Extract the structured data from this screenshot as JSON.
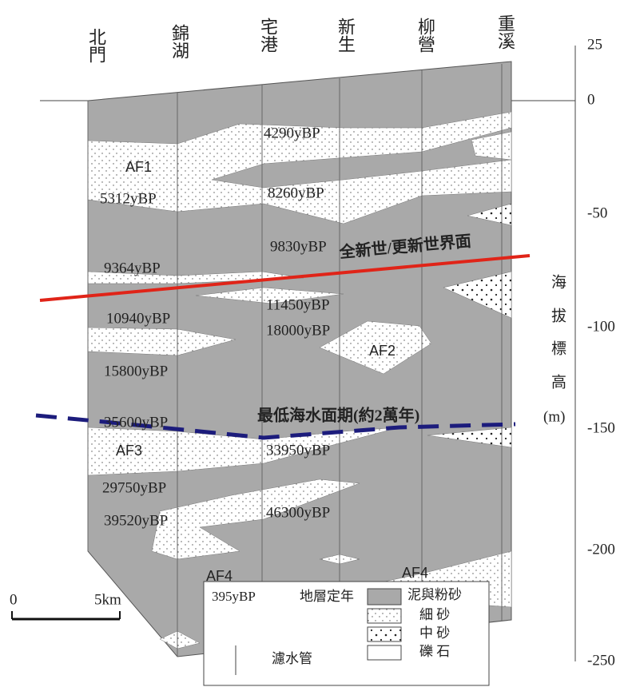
{
  "wells": [
    "北門",
    "錦湖",
    "宅港",
    "新生",
    "柳營",
    "重溪"
  ],
  "axis": {
    "ticks": [
      "25",
      "0",
      "-50",
      "-100",
      "-150",
      "-200",
      "-250"
    ],
    "title_chars": [
      "海",
      "拔",
      "標",
      "高",
      "(m)"
    ]
  },
  "ages": [
    "4290yBP",
    "5312yBP",
    "8260yBP",
    "9830yBP",
    "9364yBP",
    "11450yBP",
    "10940yBP",
    "18000yBP",
    "15800yBP",
    "35600yBP",
    "33950yBP",
    "29750yBP",
    "46300yBP",
    "39520yBP"
  ],
  "units": [
    "AF1",
    "AF2",
    "AF3",
    "AF4",
    "AF4"
  ],
  "boundaries": {
    "holocene": "全新世/更新世界面",
    "lowstand": "最低海水面期(約2萬年)"
  },
  "scale": {
    "start": "0",
    "end": "5km"
  },
  "legend": {
    "dating_sample": "395yBP",
    "dating": "地層定年",
    "screen": "濾水管",
    "mud": "泥與粉砂",
    "fine_sand": "細 砂",
    "medium_sand": "中 砂",
    "gravel": "礫 石"
  }
}
